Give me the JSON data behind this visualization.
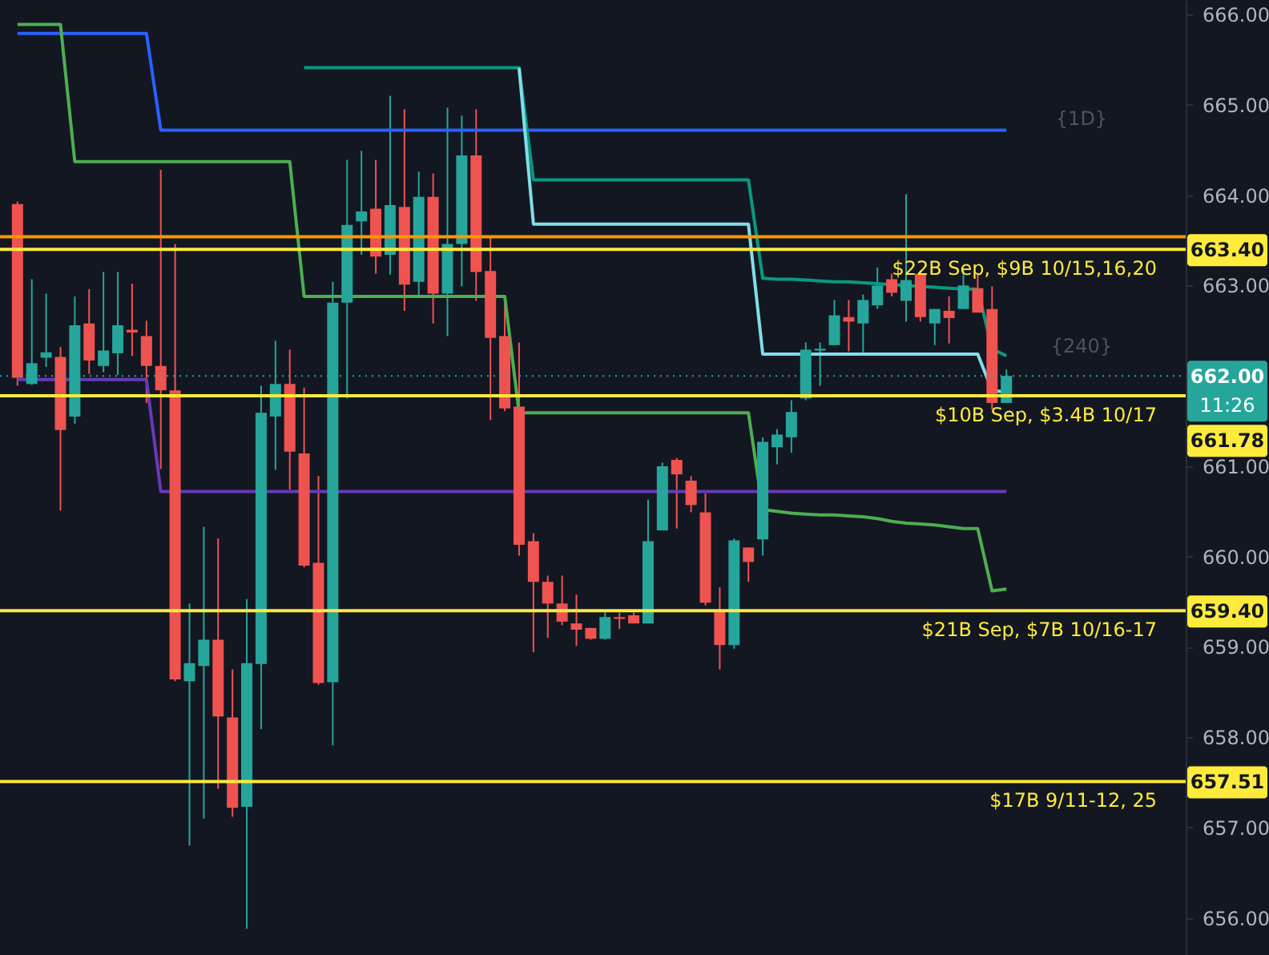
{
  "chart_data": {
    "type": "candlestick",
    "categories": [
      null,
      null,
      null,
      null,
      null,
      null,
      null,
      null,
      null,
      null,
      null,
      null,
      null,
      null,
      null,
      null,
      null,
      null,
      null,
      null,
      null,
      null,
      null,
      null,
      null,
      null,
      null,
      null,
      null,
      null,
      null,
      null,
      null,
      null,
      null,
      null,
      null,
      null,
      null,
      null,
      null,
      null,
      null,
      null,
      null,
      null,
      null,
      null,
      null,
      null,
      null,
      null,
      null,
      null,
      null,
      null,
      null,
      null,
      null,
      null,
      null,
      null,
      null,
      null,
      null,
      null,
      null,
      null,
      null,
      null
    ],
    "ohlc": [
      [
        663.9,
        663.93,
        661.89,
        661.98
      ],
      [
        661.91,
        663.07,
        661.9,
        662.14
      ],
      [
        662.2,
        662.91,
        662.1,
        662.26
      ],
      [
        662.21,
        662.32,
        660.51,
        661.4
      ],
      [
        661.55,
        662.88,
        661.47,
        662.56
      ],
      [
        662.58,
        662.96,
        662.02,
        662.17
      ],
      [
        662.11,
        663.15,
        662.04,
        662.28
      ],
      [
        662.25,
        663.15,
        662.01,
        662.56
      ],
      [
        662.51,
        663.02,
        662.22,
        662.48
      ],
      [
        662.44,
        662.61,
        661.7,
        662.11
      ],
      [
        662.11,
        664.28,
        660.97,
        661.84
      ],
      [
        661.84,
        663.46,
        658.62,
        658.64
      ],
      [
        658.62,
        659.48,
        656.8,
        658.82
      ],
      [
        658.79,
        660.33,
        657.1,
        659.08
      ],
      [
        659.08,
        660.2,
        657.43,
        658.23
      ],
      [
        658.22,
        658.75,
        657.12,
        657.22
      ],
      [
        657.23,
        659.53,
        655.88,
        658.82
      ],
      [
        658.81,
        661.89,
        658.09,
        661.59
      ],
      [
        661.55,
        662.39,
        660.96,
        661.91
      ],
      [
        661.91,
        662.29,
        660.74,
        661.16
      ],
      [
        661.14,
        661.87,
        659.88,
        659.9
      ],
      [
        659.93,
        660.89,
        658.58,
        658.6
      ],
      [
        658.61,
        663.04,
        657.91,
        662.81
      ],
      [
        662.81,
        664.39,
        661.75,
        663.67
      ],
      [
        663.71,
        664.49,
        663.34,
        663.82
      ],
      [
        663.85,
        664.39,
        663.13,
        663.32
      ],
      [
        663.34,
        665.1,
        663.12,
        663.89
      ],
      [
        663.87,
        664.95,
        662.72,
        663.01
      ],
      [
        663.04,
        664.26,
        662.88,
        663.98
      ],
      [
        663.98,
        664.24,
        662.58,
        662.91
      ],
      [
        662.91,
        664.97,
        662.44,
        663.46
      ],
      [
        663.46,
        664.88,
        662.99,
        664.44
      ],
      [
        664.44,
        664.95,
        662.83,
        663.15
      ],
      [
        663.16,
        663.54,
        661.51,
        662.42
      ],
      [
        662.44,
        662.79,
        661.61,
        661.64
      ],
      [
        661.66,
        662.37,
        660.01,
        660.13
      ],
      [
        660.17,
        660.26,
        658.94,
        659.72
      ],
      [
        659.72,
        659.79,
        659.1,
        659.48
      ],
      [
        659.48,
        659.79,
        659.24,
        659.28
      ],
      [
        659.26,
        659.58,
        659.01,
        659.19
      ],
      [
        659.21,
        659.21,
        659.08,
        659.09
      ],
      [
        659.09,
        659.38,
        659.08,
        659.33
      ],
      [
        659.33,
        659.38,
        659.2,
        659.31
      ],
      [
        659.35,
        659.38,
        659.26,
        659.26
      ],
      [
        659.26,
        660.63,
        659.26,
        660.17
      ],
      [
        660.29,
        661.04,
        660.29,
        661.0
      ],
      [
        661.07,
        661.09,
        660.31,
        660.91
      ],
      [
        660.84,
        660.89,
        660.49,
        660.57
      ],
      [
        660.49,
        660.7,
        659.46,
        659.49
      ],
      [
        659.39,
        659.66,
        658.75,
        659.02
      ],
      [
        659.02,
        660.2,
        658.98,
        660.18
      ],
      [
        660.1,
        660.1,
        659.72,
        659.94
      ],
      [
        660.19,
        661.32,
        660.01,
        661.27
      ],
      [
        661.21,
        661.41,
        661.02,
        661.35
      ],
      [
        661.32,
        661.73,
        661.15,
        661.6
      ],
      [
        661.75,
        662.37,
        661.73,
        662.29
      ],
      [
        662.28,
        662.37,
        661.89,
        662.3
      ],
      [
        662.34,
        662.84,
        662.34,
        662.67
      ],
      [
        662.65,
        662.84,
        662.27,
        662.6
      ],
      [
        662.58,
        662.9,
        662.26,
        662.84
      ],
      [
        662.78,
        663.2,
        662.74,
        663.0
      ],
      [
        663.07,
        663.13,
        662.88,
        662.92
      ],
      [
        662.83,
        664.01,
        662.6,
        663.06
      ],
      [
        663.13,
        663.17,
        662.6,
        662.65
      ],
      [
        662.58,
        662.74,
        662.34,
        662.74
      ],
      [
        662.72,
        662.88,
        662.36,
        662.64
      ],
      [
        662.74,
        663.17,
        662.74,
        663.0
      ],
      [
        662.97,
        663.14,
        662.7,
        662.7
      ],
      [
        662.74,
        662.99,
        661.63,
        661.7
      ],
      [
        661.7,
        662.07,
        661.7,
        662.0
      ]
    ],
    "colors": [
      "#ef5350",
      "#26a69a",
      "#26a69a",
      "#ef5350",
      "#26a69a",
      "#ef5350",
      "#26a69a",
      "#26a69a",
      "#ef5350",
      "#ef5350",
      "#ef5350",
      "#ef5350",
      "#26a69a",
      "#26a69a",
      "#ef5350",
      "#ef5350",
      "#26a69a",
      "#26a69a",
      "#26a69a",
      "#ef5350",
      "#ef5350",
      "#ef5350",
      "#26a69a",
      "#26a69a",
      "#26a69a",
      "#ef5350",
      "#26a69a",
      "#ef5350",
      "#26a69a",
      "#ef5350",
      "#26a69a",
      "#26a69a",
      "#ef5350",
      "#ef5350",
      "#ef5350",
      "#ef5350",
      "#ef5350",
      "#ef5350",
      "#ef5350",
      "#ef5350",
      "#ef5350",
      "#26a69a",
      "#ef5350",
      "#ef5350",
      "#26a69a",
      "#26a69a",
      "#ef5350",
      "#ef5350",
      "#ef5350",
      "#ef5350",
      "#26a69a",
      "#ef5350",
      "#26a69a",
      "#26a69a",
      "#26a69a",
      "#26a69a",
      "#26a69a",
      "#26a69a",
      "#ef5350",
      "#26a69a",
      "#26a69a",
      "#ef5350",
      "#26a69a",
      "#ef5350",
      "#26a69a",
      "#ef5350",
      "#26a69a",
      "#ef5350",
      "#ef5350",
      "#26a69a"
    ],
    "series": [
      {
        "type": "line",
        "color": "#2962ff",
        "values": [
          665.79,
          665.79,
          665.79,
          665.79,
          665.79,
          665.79,
          665.79,
          665.79,
          665.79,
          665.79,
          664.72,
          664.72,
          664.72,
          664.72,
          664.72,
          664.72,
          664.72,
          664.72,
          664.72,
          664.72,
          664.72,
          664.72,
          664.72,
          664.72,
          664.72,
          664.72,
          664.72,
          664.72,
          664.72,
          664.72,
          664.72,
          664.72,
          664.72,
          664.72,
          664.72,
          664.72,
          664.72,
          664.72,
          664.72,
          664.72,
          664.72,
          664.72,
          664.72,
          664.72,
          664.72,
          664.72,
          664.72,
          664.72,
          664.72,
          664.72,
          664.72,
          664.72,
          664.72,
          664.72,
          664.72,
          664.72,
          664.72,
          664.72,
          664.72,
          664.72,
          664.72,
          664.72,
          664.72,
          664.72,
          664.72,
          664.72,
          664.72,
          664.72,
          664.72,
          664.72
        ]
      },
      {
        "type": "line",
        "color": "#4caf50",
        "values": [
          665.89,
          665.89,
          665.89,
          665.89,
          664.37,
          664.37,
          664.37,
          664.37,
          664.37,
          664.37,
          664.37,
          664.37,
          664.37,
          664.37,
          664.37,
          664.37,
          664.37,
          664.37,
          664.37,
          664.37,
          662.88,
          662.88,
          662.88,
          662.88,
          662.88,
          662.88,
          662.88,
          662.88,
          662.88,
          662.88,
          662.88,
          662.88,
          662.88,
          662.88,
          662.88,
          661.59,
          661.59,
          661.59,
          661.59,
          661.59,
          661.59,
          661.59,
          661.59,
          661.59,
          661.59,
          661.59,
          661.59,
          661.59,
          661.59,
          661.59,
          661.59,
          661.59,
          660.52,
          660.5,
          660.48,
          660.47,
          660.46,
          660.46,
          660.45,
          660.44,
          660.42,
          660.39,
          660.37,
          660.36,
          660.35,
          660.33,
          660.31,
          660.31,
          659.62,
          659.64
        ]
      },
      {
        "type": "line",
        "color": "#673ab7",
        "values": [
          661.96,
          661.96,
          661.96,
          661.96,
          661.96,
          661.96,
          661.96,
          661.96,
          661.96,
          661.96,
          660.72,
          660.72,
          660.72,
          660.72,
          660.72,
          660.72,
          660.72,
          660.72,
          660.72,
          660.72,
          660.72,
          660.72,
          660.72,
          660.72,
          660.72,
          660.72,
          660.72,
          660.72,
          660.72,
          660.72,
          660.72,
          660.72,
          660.72,
          660.72,
          660.72,
          660.72,
          660.72,
          660.72,
          660.72,
          660.72,
          660.72,
          660.72,
          660.72,
          660.72,
          660.72,
          660.72,
          660.72,
          660.72,
          660.72,
          660.72,
          660.72,
          660.72,
          660.72,
          660.72,
          660.72,
          660.72,
          660.72,
          660.72,
          660.72,
          660.72,
          660.72,
          660.72,
          660.72,
          660.72,
          660.72,
          660.72,
          660.72,
          660.72,
          660.72,
          660.72
        ]
      },
      {
        "type": "line",
        "color": "#089981",
        "values": [
          null,
          null,
          null,
          null,
          null,
          null,
          null,
          null,
          null,
          null,
          null,
          null,
          null,
          null,
          null,
          null,
          null,
          null,
          null,
          null,
          665.41,
          665.41,
          665.41,
          665.41,
          665.41,
          665.41,
          665.41,
          665.41,
          665.41,
          665.41,
          665.41,
          665.41,
          665.41,
          665.41,
          665.41,
          665.41,
          664.17,
          664.17,
          664.17,
          664.17,
          664.17,
          664.17,
          664.17,
          664.17,
          664.17,
          664.17,
          664.17,
          664.17,
          664.17,
          664.17,
          664.17,
          664.17,
          663.08,
          663.07,
          663.07,
          663.06,
          663.05,
          663.04,
          663.04,
          663.03,
          663.02,
          663.01,
          663.0,
          662.99,
          662.98,
          662.97,
          662.96,
          662.96,
          662.3,
          662.22
        ]
      },
      {
        "type": "line",
        "color": "#80deea",
        "values": [
          null,
          null,
          null,
          null,
          null,
          null,
          null,
          null,
          null,
          null,
          null,
          null,
          null,
          null,
          null,
          null,
          null,
          null,
          null,
          null,
          null,
          null,
          null,
          null,
          null,
          null,
          null,
          null,
          null,
          null,
          null,
          null,
          null,
          null,
          null,
          665.41,
          663.68,
          663.68,
          663.68,
          663.68,
          663.68,
          663.68,
          663.68,
          663.68,
          663.68,
          663.68,
          663.68,
          663.68,
          663.68,
          663.68,
          663.68,
          663.68,
          662.24,
          662.24,
          662.24,
          662.24,
          662.24,
          662.24,
          662.24,
          662.24,
          662.24,
          662.24,
          662.24,
          662.24,
          662.24,
          662.24,
          662.24,
          662.24,
          661.84,
          661.82
        ]
      }
    ],
    "ylim": [
      655.59,
      666.16
    ],
    "yticks": [
      {
        "value": 656,
        "label": "656.00"
      },
      {
        "value": 657,
        "label": "657.00"
      },
      {
        "value": 658,
        "label": "658.00"
      },
      {
        "value": 659,
        "label": "659.00"
      },
      {
        "value": 660,
        "label": "660.00"
      },
      {
        "value": 661,
        "label": "661.00"
      },
      {
        "value": 663,
        "label": "663.00"
      },
      {
        "value": 664,
        "label": "664.00"
      },
      {
        "value": 665,
        "label": "665.00"
      },
      {
        "value": 666,
        "label": "666.00"
      }
    ],
    "ref_lines": [
      {
        "axis": "y",
        "value": 663.54,
        "color": "#ff9800"
      },
      {
        "axis": "y",
        "value": 663.4,
        "label": "$22B Sep, $9B 10/15,16,20",
        "color": "#ffeb3b"
      },
      {
        "axis": "y",
        "value": 662.0,
        "color": "#26a69a",
        "line_style": "dotted"
      },
      {
        "axis": "y",
        "value": 661.78,
        "label": "$10B Sep, $3.4B 10/17",
        "color": "#ffeb3b"
      },
      {
        "axis": "y",
        "value": 659.4,
        "label": "$21B Sep, $7B 10/16-17",
        "color": "#ffeb3b"
      },
      {
        "axis": "y",
        "value": 657.51,
        "label": "$17B 9/11-12, 25",
        "color": "#ffeb3b"
      }
    ],
    "annotations": [
      "{1D}",
      "{240}",
      "663.40",
      "662.00",
      "11:26",
      "661.78",
      "659.40",
      "657.51"
    ],
    "grid": false
  }
}
